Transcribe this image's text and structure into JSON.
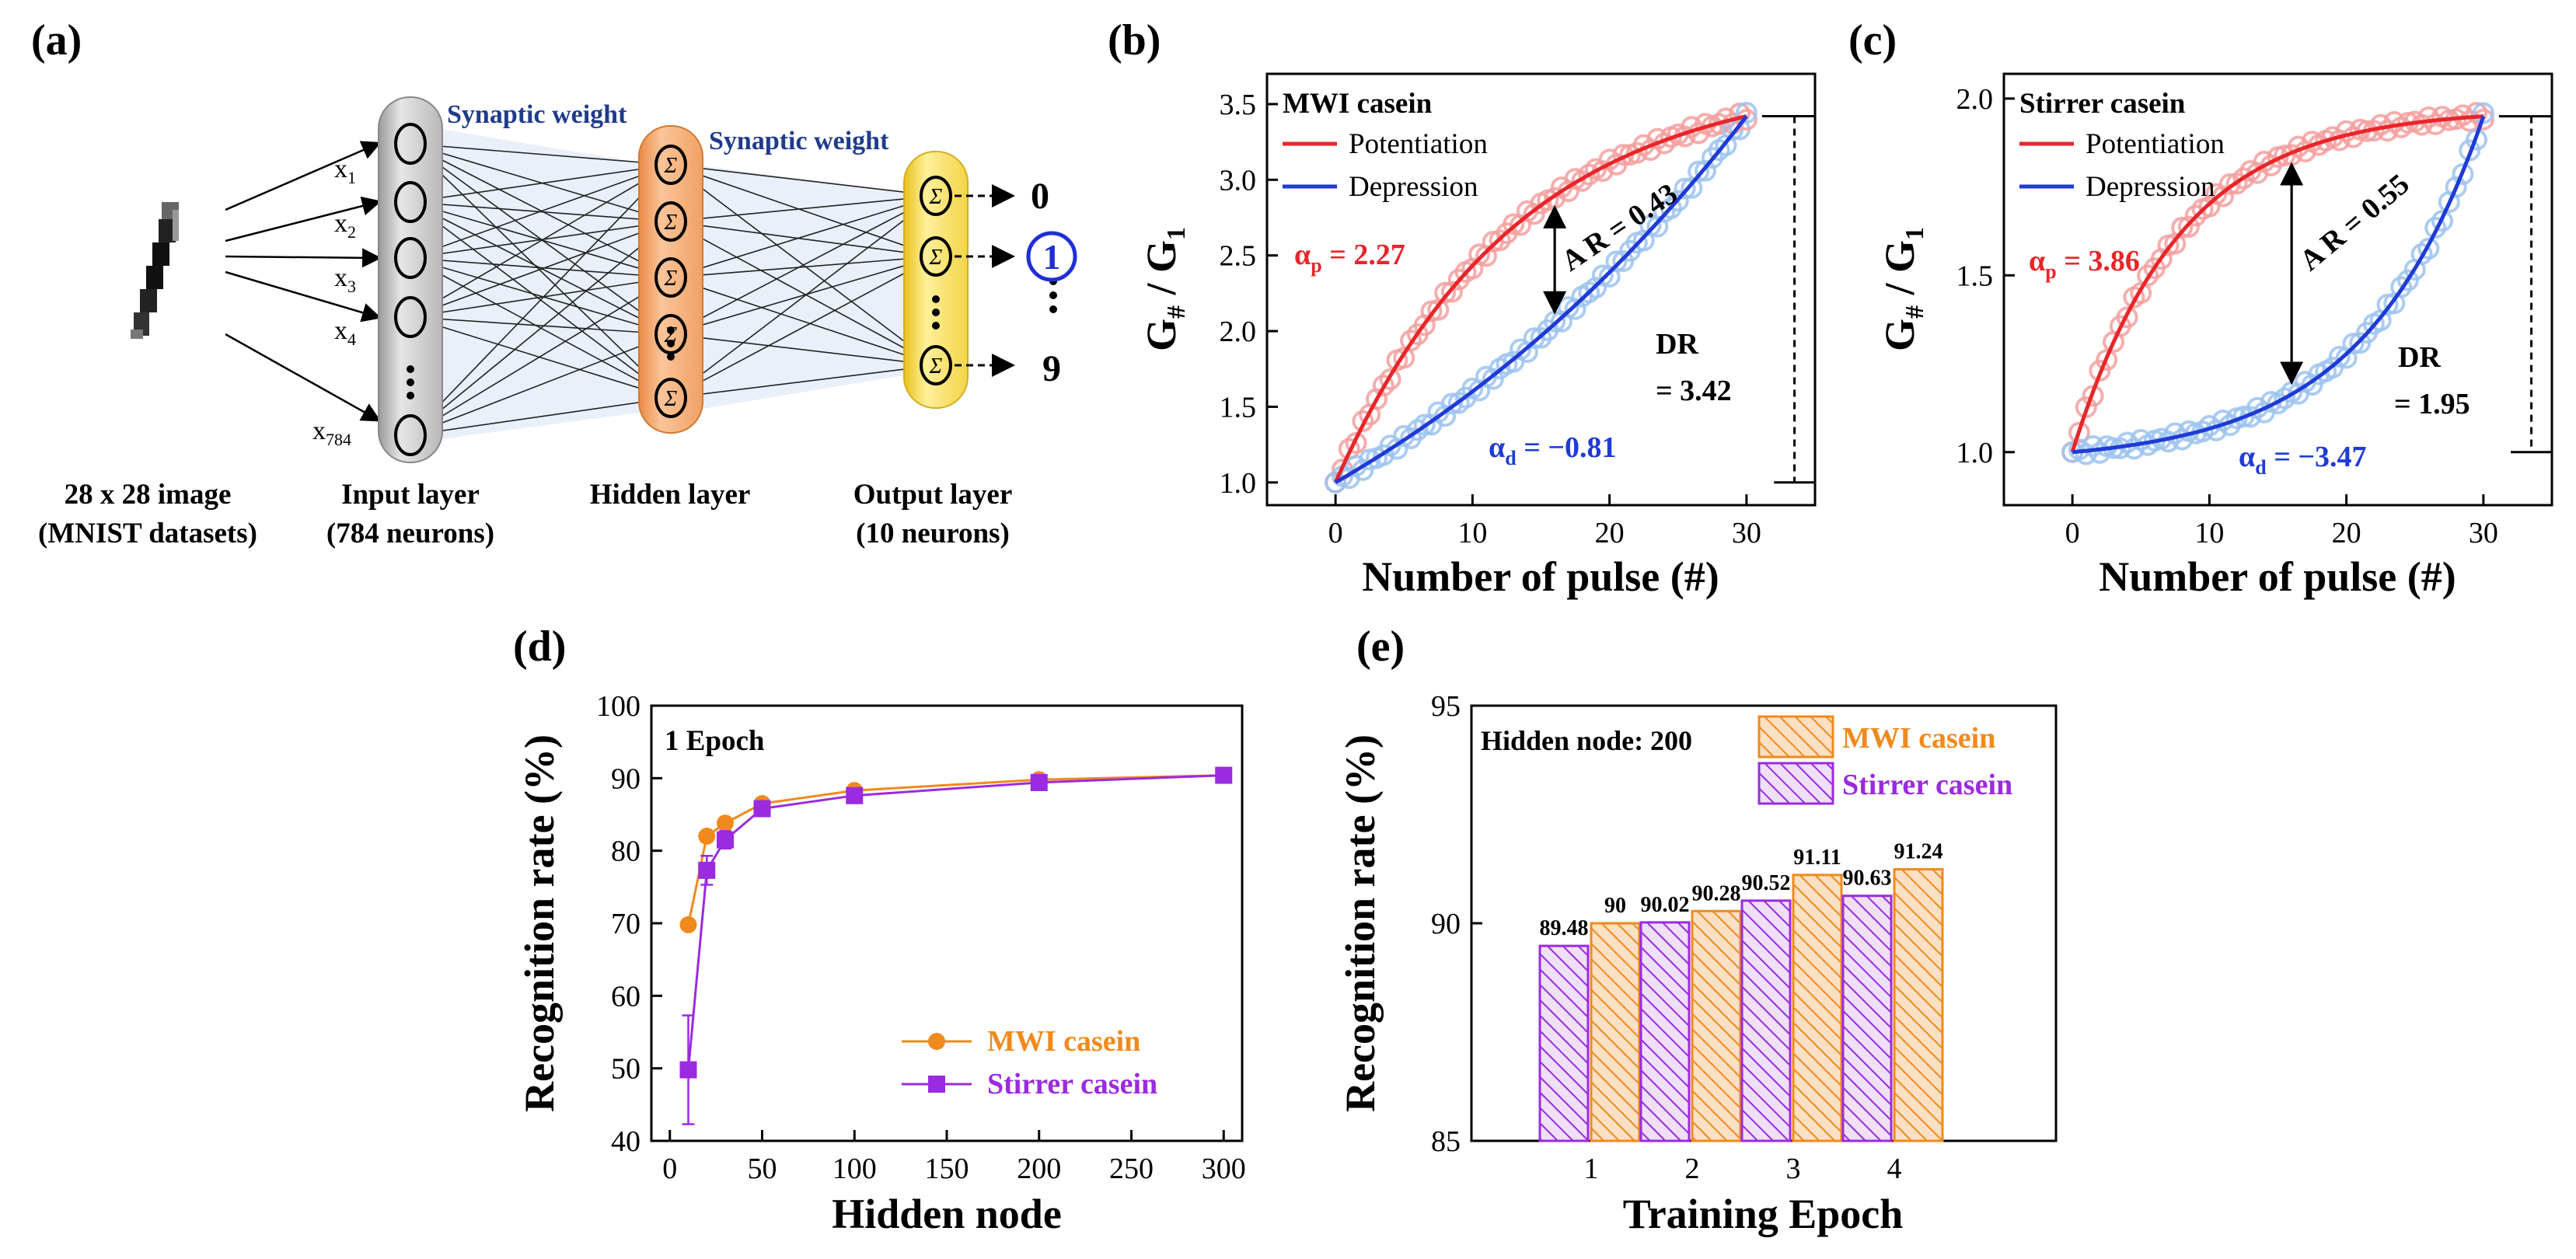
{
  "panels": {
    "a": {
      "label": "(a)",
      "synaptic_weight_1": "Synaptic weight",
      "synaptic_weight_2": "Synaptic weight",
      "inputs": [
        {
          "base": "x",
          "sub": "1"
        },
        {
          "base": "x",
          "sub": "2"
        },
        {
          "base": "x",
          "sub": "3"
        },
        {
          "base": "x",
          "sub": "4"
        },
        {
          "base": "x",
          "sub": "784"
        }
      ],
      "sigma": "Σ",
      "outputs": {
        "top": "0",
        "highlighted": "1",
        "bottom": "9"
      },
      "captions": {
        "image_line1": "28 x 28 image",
        "image_line2": "(MNIST datasets)",
        "input_line1": "Input layer",
        "input_line2": "(784 neurons)",
        "hidden": "Hidden layer",
        "output_line1": "Output layer",
        "output_line2": "(10 neurons)"
      },
      "colors": {
        "input": "#c8c8c8",
        "hidden": "#f2a36b",
        "output": "#f7d94a",
        "highlight": "#1f2fd6",
        "weight_text": "#1f3b8c"
      }
    }
  },
  "chart_data": [
    {
      "id": "b",
      "panel_label": "(b)",
      "type": "scatter",
      "legend_title": "MWI casein",
      "xlabel": "Number of pulse (#)",
      "ylabel_main": "G",
      "ylabel_sub1": "#",
      "ylabel_mid": " / G",
      "ylabel_sub2": "1",
      "xlim": [
        -5,
        35
      ],
      "ylim": [
        0.85,
        3.7
      ],
      "xticks": [
        0,
        10,
        20,
        30
      ],
      "yticks": [
        1.0,
        1.5,
        2.0,
        2.5,
        3.0,
        3.5
      ],
      "yticks_labels": [
        "1.0",
        "1.5",
        "2.0",
        "2.5",
        "3.0",
        "3.5"
      ],
      "pulses": 30,
      "g_min": 1.0,
      "g_max": 3.42,
      "alpha_p": 2.27,
      "alpha_d": -0.81,
      "series": [
        {
          "name": "Potentiation",
          "color": "#e8262a",
          "marker_color": "#f3a0a0"
        },
        {
          "name": "Depression",
          "color": "#1f3bd6",
          "marker_color": "#9ec3ef"
        }
      ],
      "annotations": {
        "alpha_p_text": "α",
        "alpha_p_sub": "p",
        "alpha_p_value": " = 2.27",
        "alpha_d_text": "α",
        "alpha_d_sub": "d",
        "alpha_d_value": " = −0.81",
        "ar_text": "A R = 0.43",
        "dr_line1": "DR",
        "dr_line2": "= 3.42"
      }
    },
    {
      "id": "c",
      "panel_label": "(c)",
      "type": "scatter",
      "legend_title": "Stirrer casein",
      "xlabel": "Number of pulse (#)",
      "ylabel_main": "G",
      "ylabel_sub1": "#",
      "ylabel_mid": " / G",
      "ylabel_sub2": "1",
      "xlim": [
        -5,
        35
      ],
      "ylim": [
        0.85,
        2.07
      ],
      "xticks": [
        0,
        10,
        20,
        30
      ],
      "yticks": [
        1.0,
        1.5,
        2.0
      ],
      "yticks_labels": [
        "1.0",
        "1.5",
        "2.0"
      ],
      "pulses": 30,
      "g_min": 1.0,
      "g_max": 1.95,
      "alpha_p": 3.86,
      "alpha_d": -3.47,
      "series": [
        {
          "name": "Potentiation",
          "color": "#e8262a",
          "marker_color": "#f3a0a0"
        },
        {
          "name": "Depression",
          "color": "#1f3bd6",
          "marker_color": "#9ec3ef"
        }
      ],
      "annotations": {
        "alpha_p_text": "α",
        "alpha_p_sub": "p",
        "alpha_p_value": " = 3.86",
        "alpha_d_text": "α",
        "alpha_d_sub": "d",
        "alpha_d_value": " = −3.47",
        "ar_text": "A R = 0.55",
        "dr_line1": "DR",
        "dr_line2": "= 1.95"
      }
    },
    {
      "id": "d",
      "panel_label": "(d)",
      "type": "line",
      "title_in_plot": "1 Epoch",
      "xlabel": "Hidden node",
      "ylabel": "Recognition rate (%)",
      "xlim": [
        -10,
        310
      ],
      "ylim": [
        40,
        100
      ],
      "xticks": [
        0,
        50,
        100,
        150,
        200,
        250,
        300
      ],
      "yticks": [
        40,
        50,
        60,
        70,
        80,
        90,
        100
      ],
      "x": [
        10,
        20,
        30,
        50,
        100,
        200,
        300
      ],
      "series": [
        {
          "name": "MWI casein",
          "color": "#f08a1c",
          "marker": "circle",
          "values": [
            69.8,
            82.0,
            83.8,
            86.5,
            88.3,
            89.8,
            90.4
          ],
          "errors": [
            0,
            0,
            0,
            0,
            0,
            0,
            0
          ]
        },
        {
          "name": "Stirrer casein",
          "color": "#9a2be0",
          "marker": "square",
          "values": [
            49.8,
            77.3,
            81.5,
            85.8,
            87.6,
            89.4,
            90.4
          ],
          "errors": [
            7.5,
            2.0,
            1.2,
            0.4,
            0.3,
            0.2,
            0.2
          ]
        }
      ]
    },
    {
      "id": "e",
      "panel_label": "(e)",
      "type": "bar",
      "title_in_plot": "Hidden node: 200",
      "xlabel": "Training Epoch",
      "ylabel": "Recognition rate (%)",
      "ylim": [
        85,
        95
      ],
      "yticks": [
        85,
        90,
        95
      ],
      "categories": [
        "1",
        "2",
        "3",
        "4"
      ],
      "series": [
        {
          "name": "Stirrer casein",
          "color": "#9a2be0",
          "fill": "#e3cdf3",
          "values": [
            89.48,
            90.02,
            90.52,
            90.63
          ],
          "labels": [
            "89.48",
            "90.02",
            "90.52",
            "90.63"
          ]
        },
        {
          "name": "MWI casein",
          "color": "#f08a1c",
          "fill": "#f8c89a",
          "values": [
            90,
            90.28,
            91.11,
            91.24
          ],
          "labels": [
            "90",
            "90.28",
            "91.11",
            "91.24"
          ]
        }
      ],
      "legend_order": [
        "MWI casein",
        "Stirrer casein"
      ]
    }
  ]
}
